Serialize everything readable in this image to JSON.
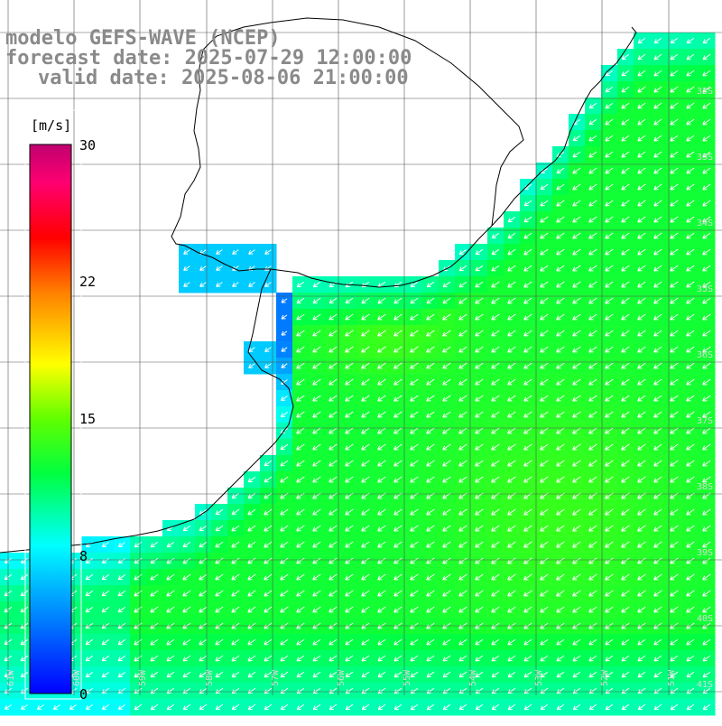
{
  "title": {
    "model": "modelo GEFS-WAVE (NCEP)",
    "forecast": "forecast date: 2025-07-29 12:00:00",
    "valid": "valid date: 2025-08-06 21:00:00"
  },
  "colorbar": {
    "unit": "[m/s]",
    "range": [
      0,
      30
    ],
    "tick_labels": [
      "30",
      "22",
      "15",
      "8",
      "0"
    ],
    "tick_values": [
      30,
      22,
      15,
      8,
      0
    ],
    "colors": [
      "#0000ff",
      "#00a0ff",
      "#00ffff",
      "#00ff40",
      "#a0ff00",
      "#ffff00",
      "#ff8000",
      "#ff0000",
      "#ff0080",
      "#c00060"
    ]
  },
  "map": {
    "lon_ticks": [
      "61W",
      "60W",
      "59W",
      "58W",
      "57W",
      "56W",
      "55W",
      "54W",
      "53W",
      "52W",
      "51W"
    ],
    "lat_ticks": [
      "32S",
      "33S",
      "34S",
      "35S",
      "36S",
      "37S",
      "38S",
      "39S",
      "40S",
      "41S"
    ],
    "field": "wind speed",
    "wind_direction": "from northeast",
    "colors": {
      "land": "#ffffff",
      "coast": "#000000",
      "grid": "#000000",
      "arrows": "#ffffff",
      "title_text": "#8a8a8a"
    }
  }
}
